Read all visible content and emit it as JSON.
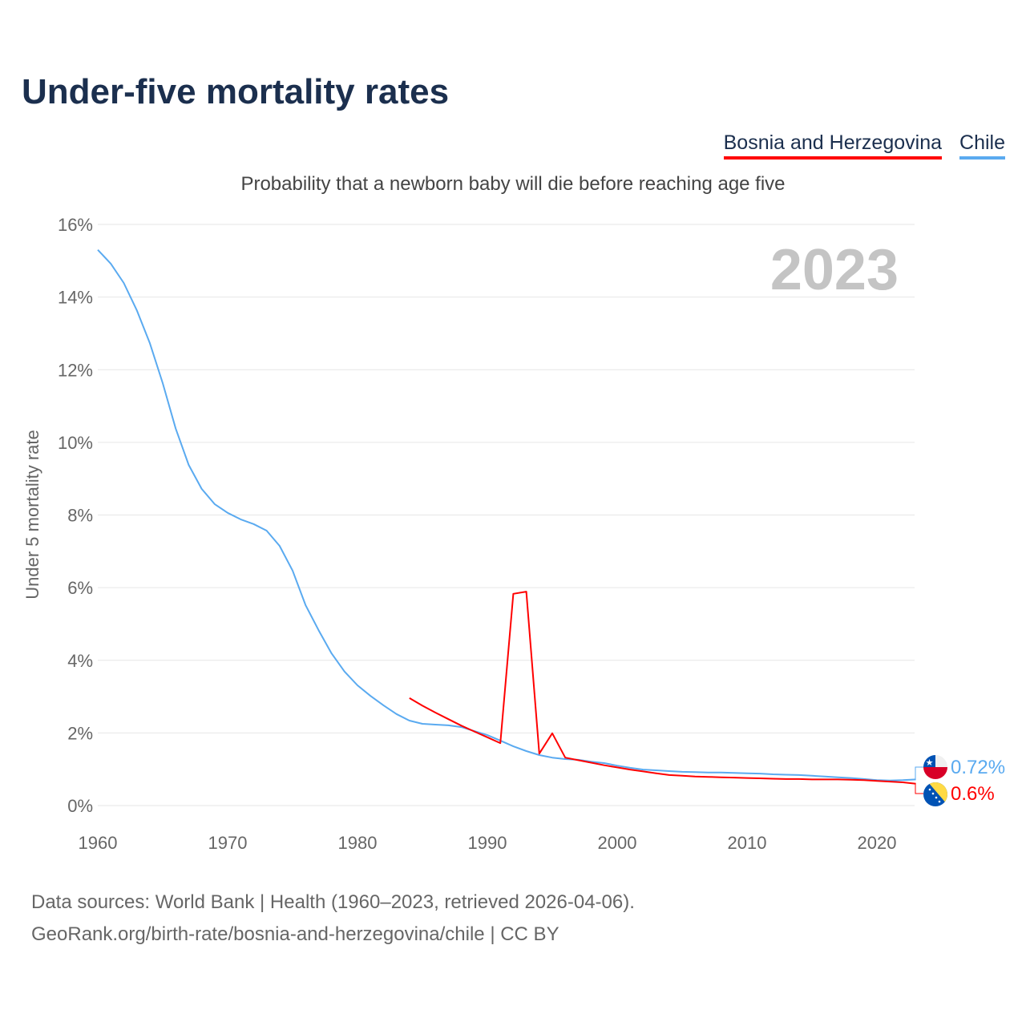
{
  "title": "Under-five mortality rates",
  "legend": [
    {
      "name": "Bosnia and Herzegovina",
      "color": "#ff0000"
    },
    {
      "name": "Chile",
      "color": "#5aaaf0"
    }
  ],
  "source_line1": "Data sources: World Bank | Health (1960–2023, retrieved 2026-04-06).",
  "source_line2": "GeoRank.org/birth-rate/bosnia-and-herzegovina/chile | CC BY",
  "chart_data": {
    "type": "line",
    "title": "Under-five mortality rates",
    "subtitle": "Probability that a newborn baby will die before reaching age five",
    "xlabel": "",
    "ylabel": "Under 5 mortality rate",
    "year_label": "2023",
    "xlim": [
      1960,
      2023
    ],
    "ylim": [
      0,
      16
    ],
    "xticks": [
      1960,
      1970,
      1980,
      1990,
      2000,
      2010,
      2020
    ],
    "yticks": [
      0,
      2,
      4,
      6,
      8,
      10,
      12,
      14,
      16
    ],
    "ytick_labels": [
      "0%",
      "2%",
      "4%",
      "6%",
      "8%",
      "10%",
      "12%",
      "14%",
      "16%"
    ],
    "grid": true,
    "series": [
      {
        "name": "Chile",
        "color": "#5aaaf0",
        "end_label": "0.72%",
        "x": [
          1960,
          1961,
          1962,
          1963,
          1964,
          1965,
          1966,
          1967,
          1968,
          1969,
          1970,
          1971,
          1972,
          1973,
          1974,
          1975,
          1976,
          1977,
          1978,
          1979,
          1980,
          1981,
          1982,
          1983,
          1984,
          1985,
          1986,
          1987,
          1988,
          1989,
          1990,
          1991,
          1992,
          1993,
          1994,
          1995,
          1996,
          1997,
          1998,
          1999,
          2000,
          2001,
          2002,
          2003,
          2004,
          2005,
          2006,
          2007,
          2008,
          2009,
          2010,
          2011,
          2012,
          2013,
          2014,
          2015,
          2016,
          2017,
          2018,
          2019,
          2020,
          2021,
          2022,
          2023
        ],
        "values": [
          15.3,
          14.92,
          14.39,
          13.64,
          12.74,
          11.63,
          10.38,
          9.38,
          8.72,
          8.3,
          8.06,
          7.88,
          7.75,
          7.57,
          7.15,
          6.47,
          5.52,
          4.83,
          4.19,
          3.69,
          3.31,
          3.02,
          2.76,
          2.52,
          2.34,
          2.25,
          2.23,
          2.21,
          2.16,
          2.05,
          1.94,
          1.79,
          1.63,
          1.5,
          1.39,
          1.32,
          1.28,
          1.26,
          1.21,
          1.17,
          1.1,
          1.04,
          0.99,
          0.97,
          0.95,
          0.93,
          0.92,
          0.91,
          0.91,
          0.9,
          0.89,
          0.88,
          0.86,
          0.85,
          0.84,
          0.82,
          0.8,
          0.78,
          0.76,
          0.73,
          0.7,
          0.69,
          0.7,
          0.72
        ]
      },
      {
        "name": "Bosnia and Herzegovina",
        "color": "#ff0000",
        "end_label": "0.6%",
        "x": [
          1984,
          1985,
          1986,
          1987,
          1988,
          1989,
          1990,
          1991,
          1992,
          1993,
          1994,
          1995,
          1996,
          1997,
          1998,
          1999,
          2000,
          2001,
          2002,
          2003,
          2004,
          2005,
          2006,
          2007,
          2008,
          2009,
          2010,
          2011,
          2012,
          2013,
          2014,
          2015,
          2016,
          2017,
          2018,
          2019,
          2020,
          2021,
          2022,
          2023
        ],
        "values": [
          2.96,
          2.75,
          2.56,
          2.38,
          2.2,
          2.04,
          1.88,
          1.72,
          5.83,
          5.89,
          1.43,
          1.99,
          1.32,
          1.25,
          1.18,
          1.11,
          1.05,
          0.99,
          0.94,
          0.89,
          0.84,
          0.82,
          0.8,
          0.79,
          0.78,
          0.77,
          0.76,
          0.75,
          0.74,
          0.73,
          0.73,
          0.72,
          0.72,
          0.72,
          0.71,
          0.7,
          0.68,
          0.66,
          0.64,
          0.6
        ]
      }
    ]
  }
}
